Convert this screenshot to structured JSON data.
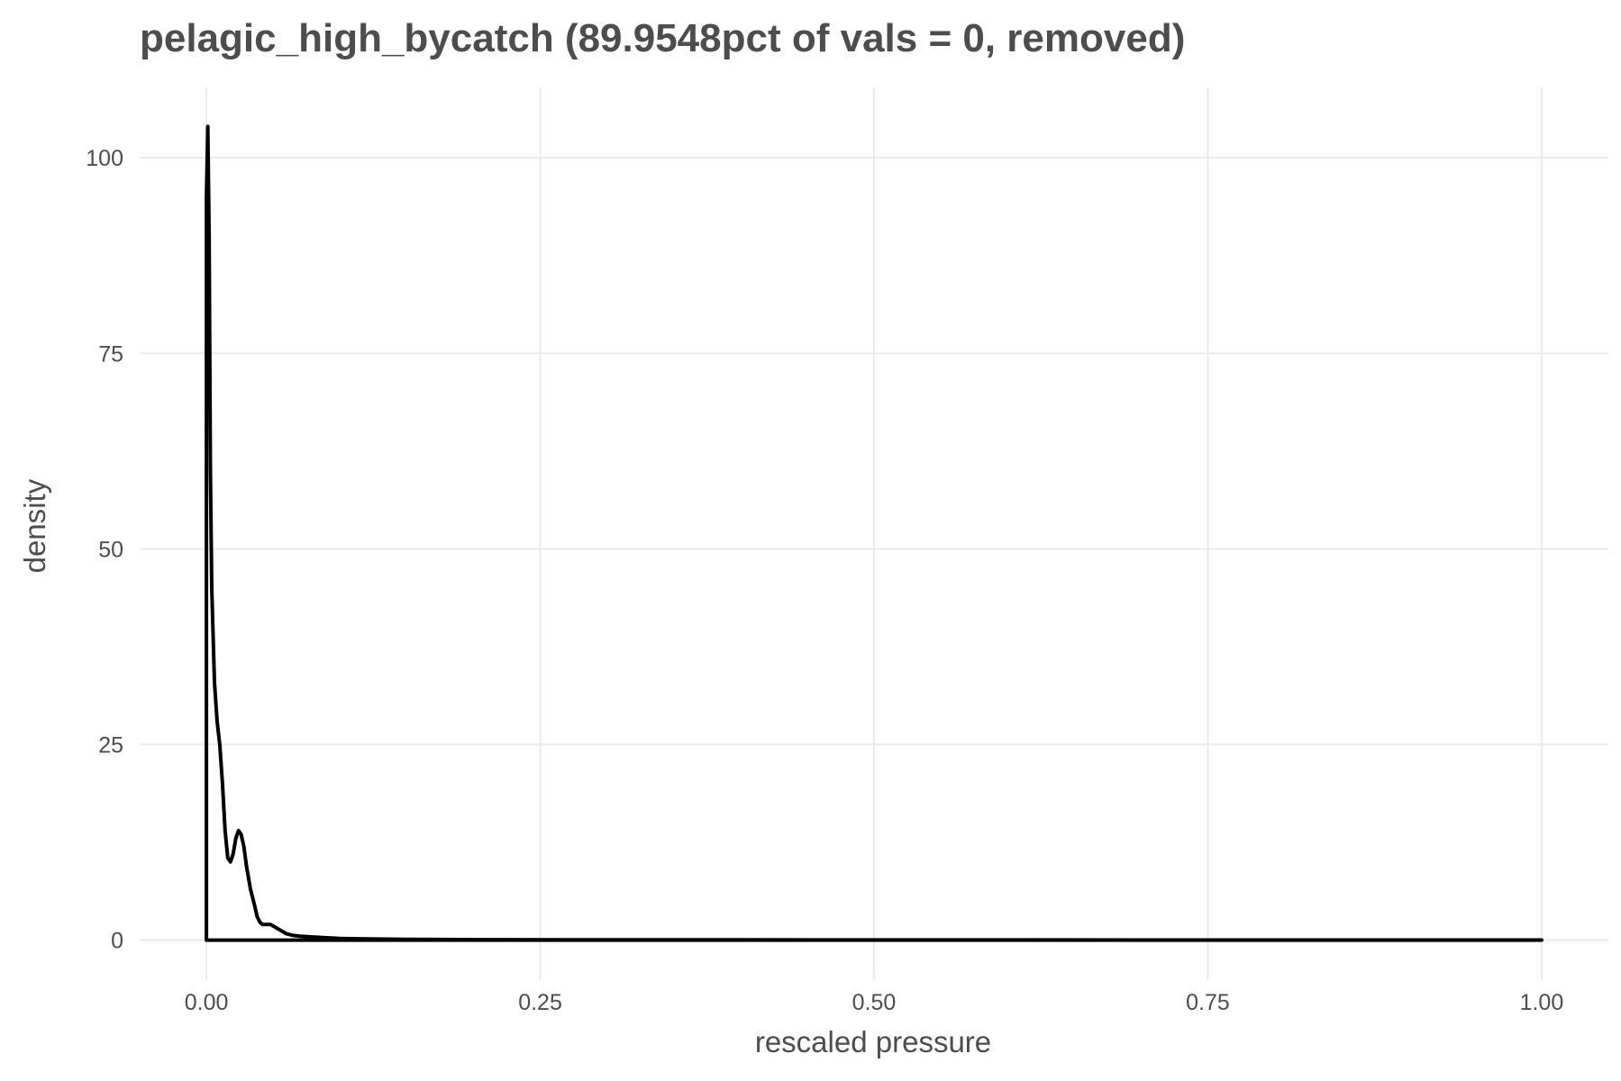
{
  "chart_data": {
    "type": "line",
    "title": "pelagic_high_bycatch (89.9548pct of vals = 0, removed)",
    "xlabel": "rescaled pressure",
    "ylabel": "density",
    "xlim": [
      -0.05,
      1.05
    ],
    "ylim": [
      -5,
      109
    ],
    "x_ticks": [
      0,
      0.25,
      0.5,
      0.75,
      1.0
    ],
    "x_tick_labels": [
      "0.00",
      "0.25",
      "0.50",
      "0.75",
      "1.00"
    ],
    "y_ticks": [
      0,
      25,
      50,
      75,
      100
    ],
    "y_tick_labels": [
      "0",
      "25",
      "50",
      "75",
      "100"
    ],
    "grid": true,
    "line_color": "#000000",
    "grid_color": "#ebebeb",
    "series": [
      {
        "x": [
          0,
          0,
          0.001,
          0.002,
          0.003,
          0.004,
          0.006,
          0.008,
          0.01,
          0.012,
          0.014,
          0.016,
          0.018,
          0.02,
          0.022,
          0.024,
          0.026,
          0.028,
          0.03,
          0.033,
          0.036,
          0.038,
          0.04,
          0.042,
          0.045,
          0.048,
          0.05,
          0.053,
          0.056,
          0.06,
          0.065,
          0.07,
          0.08,
          0.09,
          0.1,
          0.12,
          0.15,
          0.2,
          0.3,
          0.4,
          0.5,
          0.6,
          0.7,
          0.8,
          0.9,
          1.0,
          1.0,
          0
        ],
        "y": [
          0,
          95,
          104,
          90,
          60,
          45,
          33,
          28,
          25,
          20,
          14,
          10.5,
          10,
          11,
          13,
          14,
          13.5,
          12,
          9.5,
          6.5,
          4.5,
          3,
          2.3,
          2,
          2,
          2,
          1.8,
          1.5,
          1.2,
          0.8,
          0.6,
          0.5,
          0.4,
          0.3,
          0.2,
          0.15,
          0.1,
          0.05,
          0.03,
          0.03,
          0.02,
          0.02,
          0.01,
          0.01,
          0.01,
          0.01,
          0,
          0
        ]
      }
    ]
  }
}
